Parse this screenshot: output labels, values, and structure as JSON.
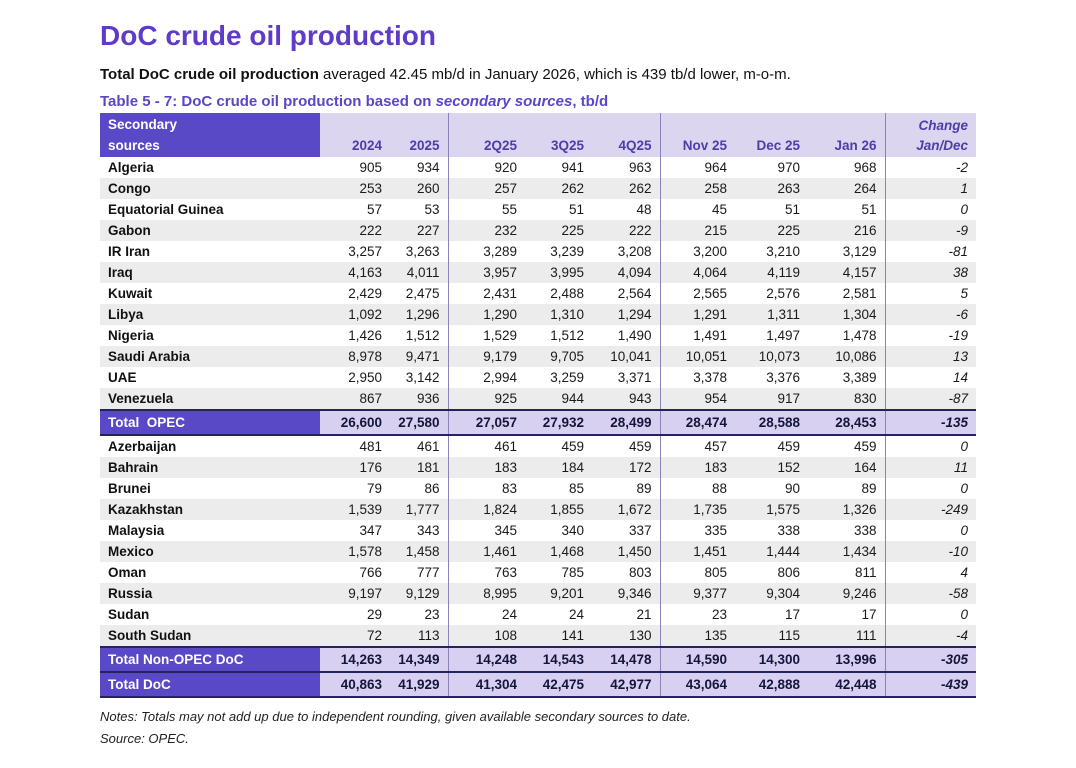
{
  "page": {
    "title": "DoC crude oil production",
    "subtitle_bold": "Total DoC crude oil production",
    "subtitle_rest": " averaged 42.45 mb/d in January 2026, which is 439 tb/d lower, m-o-m.",
    "caption_prefix": "Table 5 - 7: DoC crude oil production based on ",
    "caption_italic": "secondary sources",
    "caption_suffix": ", tb/d",
    "notes": "Notes: Totals may not add up due to independent rounding, given available secondary sources to date.",
    "source": "Source: OPEC."
  },
  "colors": {
    "accent_purple": "#5A49C6",
    "title_purple": "#5F3BC8",
    "header_light_bg": "#DBD5EF",
    "header_text_purple": "#4C3DA8",
    "total_value_bg": "#D8D0F1",
    "stripe_gray": "#ECECEC",
    "dark_border": "#23235F",
    "separator": "#8983B8"
  },
  "table": {
    "header": {
      "label_line1": "Secondary",
      "label_line2": "sources",
      "columns": [
        "2024",
        "2025",
        "2Q25",
        "3Q25",
        "4Q25",
        "Nov 25",
        "Dec 25",
        "Jan 26"
      ],
      "change_line1": "Change",
      "change_line2": "Jan/Dec"
    },
    "rows": [
      {
        "label": "Algeria",
        "type": "country",
        "values": [
          "905",
          "934",
          "920",
          "941",
          "963",
          "964",
          "970",
          "968"
        ],
        "change": "-2"
      },
      {
        "label": "Congo",
        "type": "country",
        "values": [
          "253",
          "260",
          "257",
          "262",
          "262",
          "258",
          "263",
          "264"
        ],
        "change": "1"
      },
      {
        "label": "Equatorial Guinea",
        "type": "country",
        "values": [
          "57",
          "53",
          "55",
          "51",
          "48",
          "45",
          "51",
          "51"
        ],
        "change": "0"
      },
      {
        "label": "Gabon",
        "type": "country",
        "values": [
          "222",
          "227",
          "232",
          "225",
          "222",
          "215",
          "225",
          "216"
        ],
        "change": "-9"
      },
      {
        "label": "IR Iran",
        "type": "country",
        "values": [
          "3,257",
          "3,263",
          "3,289",
          "3,239",
          "3,208",
          "3,200",
          "3,210",
          "3,129"
        ],
        "change": "-81"
      },
      {
        "label": "Iraq",
        "type": "country",
        "values": [
          "4,163",
          "4,011",
          "3,957",
          "3,995",
          "4,094",
          "4,064",
          "4,119",
          "4,157"
        ],
        "change": "38"
      },
      {
        "label": "Kuwait",
        "type": "country",
        "values": [
          "2,429",
          "2,475",
          "2,431",
          "2,488",
          "2,564",
          "2,565",
          "2,576",
          "2,581"
        ],
        "change": "5"
      },
      {
        "label": "Libya",
        "type": "country",
        "values": [
          "1,092",
          "1,296",
          "1,290",
          "1,310",
          "1,294",
          "1,291",
          "1,311",
          "1,304"
        ],
        "change": "-6"
      },
      {
        "label": "Nigeria",
        "type": "country",
        "values": [
          "1,426",
          "1,512",
          "1,529",
          "1,512",
          "1,490",
          "1,491",
          "1,497",
          "1,478"
        ],
        "change": "-19"
      },
      {
        "label": "Saudi Arabia",
        "type": "country",
        "values": [
          "8,978",
          "9,471",
          "9,179",
          "9,705",
          "10,041",
          "10,051",
          "10,073",
          "10,086"
        ],
        "change": "13"
      },
      {
        "label": "UAE",
        "type": "country",
        "values": [
          "2,950",
          "3,142",
          "2,994",
          "3,259",
          "3,371",
          "3,378",
          "3,376",
          "3,389"
        ],
        "change": "14"
      },
      {
        "label": "Venezuela",
        "type": "country",
        "values": [
          "867",
          "936",
          "925",
          "944",
          "943",
          "954",
          "917",
          "830"
        ],
        "change": "-87"
      },
      {
        "label": "Total  OPEC",
        "type": "total",
        "values": [
          "26,600",
          "27,580",
          "27,057",
          "27,932",
          "28,499",
          "28,474",
          "28,588",
          "28,453"
        ],
        "change": "-135"
      },
      {
        "label": "Azerbaijan",
        "type": "country",
        "values": [
          "481",
          "461",
          "461",
          "459",
          "459",
          "457",
          "459",
          "459"
        ],
        "change": "0"
      },
      {
        "label": "Bahrain",
        "type": "country",
        "values": [
          "176",
          "181",
          "183",
          "184",
          "172",
          "183",
          "152",
          "164"
        ],
        "change": "11"
      },
      {
        "label": "Brunei",
        "type": "country",
        "values": [
          "79",
          "86",
          "83",
          "85",
          "89",
          "88",
          "90",
          "89"
        ],
        "change": "0"
      },
      {
        "label": "Kazakhstan",
        "type": "country",
        "values": [
          "1,539",
          "1,777",
          "1,824",
          "1,855",
          "1,672",
          "1,735",
          "1,575",
          "1,326"
        ],
        "change": "-249"
      },
      {
        "label": "Malaysia",
        "type": "country",
        "values": [
          "347",
          "343",
          "345",
          "340",
          "337",
          "335",
          "338",
          "338"
        ],
        "change": "0"
      },
      {
        "label": "Mexico",
        "type": "country",
        "values": [
          "1,578",
          "1,458",
          "1,461",
          "1,468",
          "1,450",
          "1,451",
          "1,444",
          "1,434"
        ],
        "change": "-10"
      },
      {
        "label": "Oman",
        "type": "country",
        "values": [
          "766",
          "777",
          "763",
          "785",
          "803",
          "805",
          "806",
          "811"
        ],
        "change": "4"
      },
      {
        "label": "Russia",
        "type": "country",
        "values": [
          "9,197",
          "9,129",
          "8,995",
          "9,201",
          "9,346",
          "9,377",
          "9,304",
          "9,246"
        ],
        "change": "-58"
      },
      {
        "label": "Sudan",
        "type": "country",
        "values": [
          "29",
          "23",
          "24",
          "24",
          "21",
          "23",
          "17",
          "17"
        ],
        "change": "0"
      },
      {
        "label": "South Sudan",
        "type": "country",
        "values": [
          "72",
          "113",
          "108",
          "141",
          "130",
          "135",
          "115",
          "111"
        ],
        "change": "-4"
      },
      {
        "label": "Total Non-OPEC DoC",
        "type": "total",
        "values": [
          "14,263",
          "14,349",
          "14,248",
          "14,543",
          "14,478",
          "14,590",
          "14,300",
          "13,996"
        ],
        "change": "-305"
      },
      {
        "label": "Total DoC",
        "type": "total",
        "values": [
          "40,863",
          "41,929",
          "41,304",
          "42,475",
          "42,977",
          "43,064",
          "42,888",
          "42,448"
        ],
        "change": "-439"
      }
    ]
  }
}
